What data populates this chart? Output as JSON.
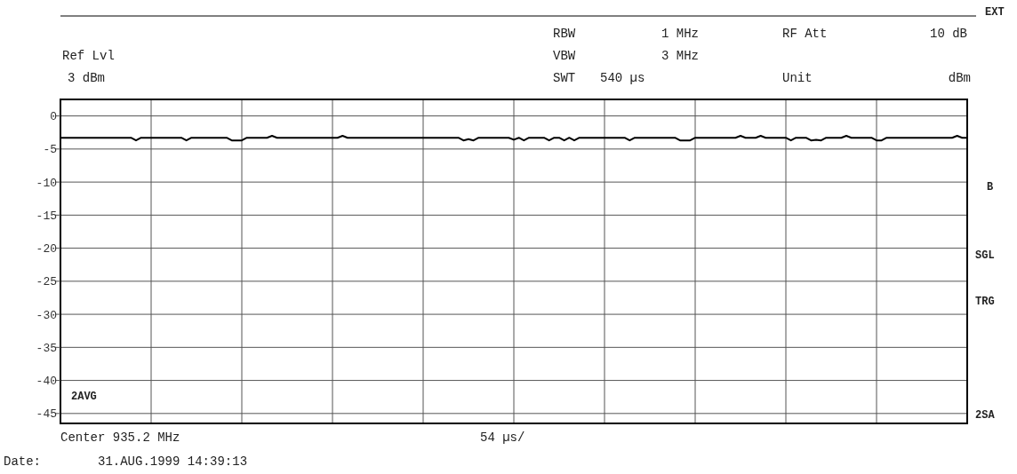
{
  "chart_data": {
    "type": "line",
    "categories": [
      null,
      null,
      null,
      null,
      null,
      null,
      null,
      null,
      null,
      null,
      null,
      null,
      null,
      null,
      null,
      null,
      null,
      null,
      null,
      null,
      null,
      null,
      null,
      null,
      null,
      null,
      null,
      null,
      null,
      null,
      null,
      null,
      null,
      null,
      null,
      null,
      null,
      null,
      null,
      null,
      null,
      null,
      null,
      null,
      null,
      null,
      null,
      null,
      null,
      null,
      null,
      null,
      null,
      null,
      null,
      null,
      null,
      null,
      null,
      null,
      null,
      null,
      null,
      null,
      null,
      null,
      null,
      null,
      null,
      null,
      null,
      null,
      null,
      null,
      null,
      null,
      null,
      null,
      null,
      null,
      null,
      null,
      null,
      null,
      null,
      null,
      null,
      null,
      null,
      null,
      null,
      null,
      null,
      null,
      null,
      null,
      null,
      null,
      null,
      null,
      null,
      null,
      null,
      null,
      null,
      null,
      null,
      null,
      null,
      null,
      null,
      null,
      null,
      null,
      null,
      null,
      null,
      null,
      null,
      null,
      null,
      null,
      null,
      null,
      null,
      null,
      null,
      null,
      null,
      null,
      null,
      null,
      null,
      null,
      null,
      null,
      null,
      null,
      null,
      null,
      null,
      null,
      null,
      null,
      null,
      null,
      null,
      null,
      null,
      null,
      null,
      null,
      null,
      null,
      null,
      null,
      null,
      null,
      null,
      null,
      null,
      null,
      null,
      null,
      null,
      null,
      null,
      null,
      null,
      null,
      null,
      null,
      null,
      null,
      null,
      null,
      null,
      null,
      null,
      null,
      null
    ],
    "series": [
      {
        "color": "#000000",
        "values": [
          -3.3,
          -3.3,
          -3.3,
          -3.3,
          -3.3,
          -3.3,
          -3.3,
          -3.3,
          -3.3,
          -3.3,
          -3.3,
          -3.3,
          -3.3,
          -3.3,
          -3.3,
          -3.7,
          -3.3,
          -3.3,
          -3.3,
          -3.3,
          -3.3,
          -3.3,
          -3.3,
          -3.3,
          -3.3,
          -3.7,
          -3.3,
          -3.3,
          -3.3,
          -3.3,
          -3.3,
          -3.3,
          -3.3,
          -3.3,
          -3.7,
          -3.7,
          -3.7,
          -3.3,
          -3.3,
          -3.3,
          -3.3,
          -3.3,
          -3.0,
          -3.3,
          -3.3,
          -3.3,
          -3.3,
          -3.3,
          -3.3,
          -3.3,
          -3.3,
          -3.3,
          -3.3,
          -3.3,
          -3.3,
          -3.3,
          -3.0,
          -3.3,
          -3.3,
          -3.3,
          -3.3,
          -3.3,
          -3.3,
          -3.3,
          -3.3,
          -3.3,
          -3.3,
          -3.3,
          -3.3,
          -3.3,
          -3.3,
          -3.3,
          -3.3,
          -3.3,
          -3.3,
          -3.3,
          -3.3,
          -3.3,
          -3.3,
          -3.3,
          -3.7,
          -3.5,
          -3.7,
          -3.3,
          -3.3,
          -3.3,
          -3.3,
          -3.3,
          -3.3,
          -3.3,
          -3.6,
          -3.3,
          -3.7,
          -3.3,
          -3.3,
          -3.3,
          -3.3,
          -3.7,
          -3.3,
          -3.3,
          -3.7,
          -3.3,
          -3.7,
          -3.3,
          -3.3,
          -3.3,
          -3.3,
          -3.3,
          -3.3,
          -3.3,
          -3.3,
          -3.3,
          -3.3,
          -3.7,
          -3.3,
          -3.3,
          -3.3,
          -3.3,
          -3.3,
          -3.3,
          -3.3,
          -3.3,
          -3.3,
          -3.7,
          -3.7,
          -3.7,
          -3.3,
          -3.3,
          -3.3,
          -3.3,
          -3.3,
          -3.3,
          -3.3,
          -3.3,
          -3.3,
          -3.0,
          -3.3,
          -3.3,
          -3.3,
          -3.0,
          -3.3,
          -3.3,
          -3.3,
          -3.3,
          -3.3,
          -3.7,
          -3.3,
          -3.3,
          -3.3,
          -3.7,
          -3.6,
          -3.7,
          -3.3,
          -3.3,
          -3.3,
          -3.3,
          -3.0,
          -3.3,
          -3.3,
          -3.3,
          -3.3,
          -3.3,
          -3.7,
          -3.7,
          -3.3,
          -3.3,
          -3.3,
          -3.3,
          -3.3,
          -3.3,
          -3.3,
          -3.3,
          -3.3,
          -3.3,
          -3.3,
          -3.3,
          -3.3,
          -3.3,
          -3.0,
          -3.3,
          -3.3
        ]
      }
    ],
    "ylim": [
      -46.5,
      2.5
    ],
    "yticks": [
      0,
      -5,
      -10,
      -15,
      -20,
      -25,
      -30,
      -35,
      -40,
      -45
    ],
    "grid": true,
    "annotations": [
      "EXT",
      "RBW",
      "1 MHz",
      "RF Att",
      "10 dB",
      "Ref Lvl",
      "VBW",
      "3 MHz",
      "3 dBm",
      "SWT",
      "540 µs",
      "Unit",
      "dBm",
      "B",
      "SGL",
      "TRG",
      "2SA",
      "2AVG",
      "Center 935.2 MHz",
      "54 µs/",
      "Date:",
      "31.AUG.1999  14:39:13"
    ]
  }
}
